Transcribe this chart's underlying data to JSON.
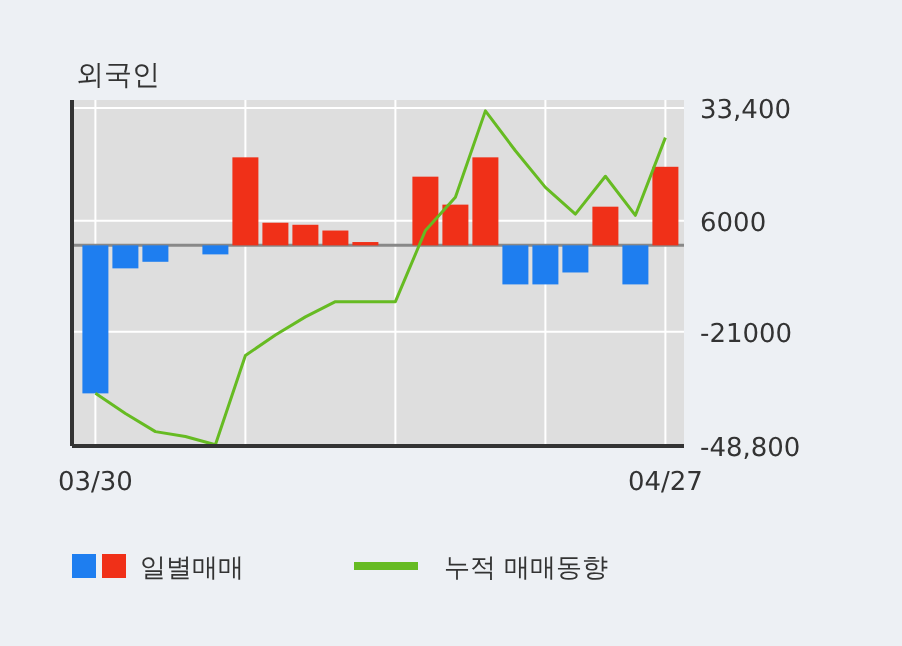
{
  "chart_data": {
    "type": "bar",
    "title": "외국인",
    "categories": [
      "03/30",
      null,
      null,
      null,
      null,
      null,
      null,
      null,
      null,
      null,
      null,
      null,
      null,
      null,
      null,
      null,
      null,
      null,
      null,
      "04/27"
    ],
    "series": [
      {
        "name": "일별매매",
        "colors": [
          "#1e7ef0",
          "#1e7ef0",
          "#1e7ef0",
          "#1e7ef0",
          "#1e7ef0",
          "#f03018",
          "#f03018",
          "#f03018",
          "#f03018",
          "#f03018",
          "#f03018",
          "#f03018",
          "#f03018",
          "#f03018",
          "#1e7ef0",
          "#1e7ef0",
          "#1e7ef0",
          "#f03018",
          "#1e7ef0",
          "#f03018"
        ],
        "values": [
          -36000,
          -5600,
          -4000,
          0,
          -2200,
          21400,
          5500,
          5000,
          3600,
          800,
          0,
          16700,
          9900,
          21400,
          -9500,
          -9500,
          -6600,
          9400,
          -9500,
          19100
        ]
      },
      {
        "name": "누적 매매동향",
        "type": "line",
        "color": "#66bb22",
        "values": [
          -36000,
          -40900,
          -45300,
          -46500,
          -48500,
          -26800,
          -21800,
          -17400,
          -13700,
          -13700,
          -13700,
          3600,
          11700,
          32700,
          23000,
          14100,
          7600,
          16800,
          7300,
          26200
        ]
      }
    ],
    "ylim": [
      -48800,
      33400
    ],
    "yticks": [
      {
        "value": 33400,
        "label": "33,400"
      },
      6000,
      -21000,
      {
        "value": -48800,
        "label": "-48,800"
      }
    ],
    "grid": true,
    "legend": "bottom"
  }
}
